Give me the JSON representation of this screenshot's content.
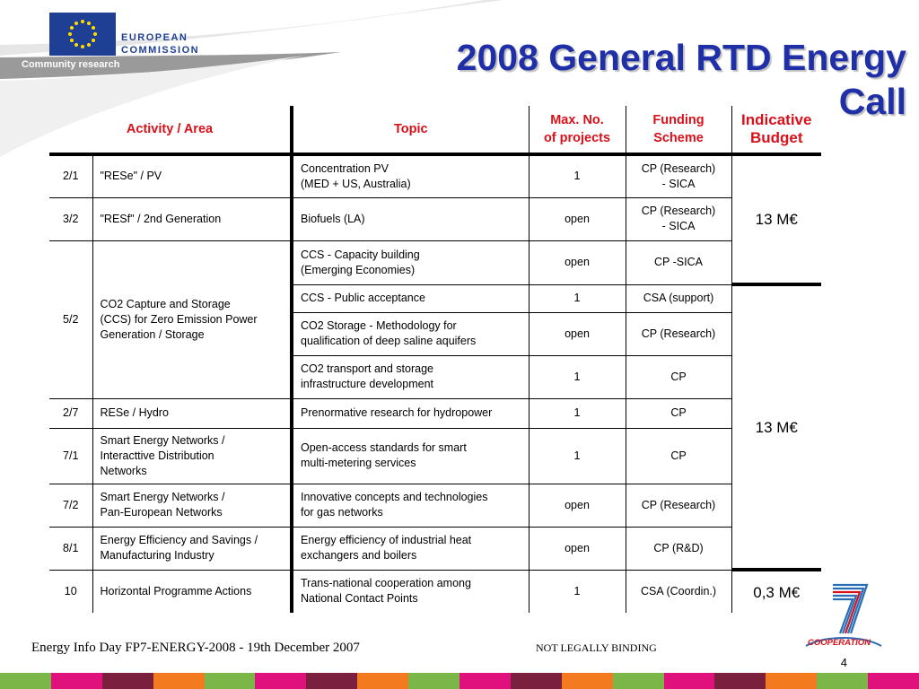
{
  "header": {
    "eu_line1": "EUROPEAN",
    "eu_line2": "COMMISSION",
    "community": "Community research",
    "title_line1": "2008 General RTD Energy",
    "title_line2": "Call"
  },
  "table": {
    "headers": {
      "activity": "Activity / Area",
      "topic": "Topic",
      "max_line1": "Max. No.",
      "max_line2": "of projects",
      "funding_line1": "Funding",
      "funding_line2": "Scheme",
      "budget_line1": "Indicative",
      "budget_line2": "Budget"
    },
    "rows": [
      {
        "num": "2/1",
        "activity": "\"RESe\" / PV",
        "topic1": "Concentration PV",
        "topic2": "(MED + US, Australia)",
        "max": "1",
        "fund1": "CP (Research)",
        "fund2": "- SICA"
      },
      {
        "num": "3/2",
        "activity": "\"RESf\" / 2nd Generation",
        "topic1": "Biofuels (LA)",
        "topic2": "",
        "max": "open",
        "fund1": "CP (Research)",
        "fund2": "- SICA"
      },
      {
        "num": "5/2",
        "activity1": "CO2 Capture and Storage",
        "activity2": "(CCS) for Zero Emission Power",
        "activity3": "Generation / Storage",
        "topic1": "CCS - Capacity building",
        "topic2": "(Emerging Economies)",
        "max": "open",
        "fund1": "CP -SICA",
        "fund2": ""
      },
      {
        "topic1": "CCS - Public acceptance",
        "topic2": "",
        "max": "1",
        "fund1": "CSA (support)",
        "fund2": ""
      },
      {
        "topic1": "CO2 Storage - Methodology for",
        "topic2": "qualification of deep saline aquifers",
        "max": "open",
        "fund1": "CP (Research)",
        "fund2": ""
      },
      {
        "topic1": "CO2 transport and storage",
        "topic2": "infrastructure development",
        "max": "1",
        "fund1": "CP",
        "fund2": ""
      },
      {
        "num": "2/7",
        "activity": "RESe / Hydro",
        "topic1": "Prenormative research for hydropower",
        "topic2": "",
        "max": "1",
        "fund1": "CP",
        "fund2": ""
      },
      {
        "num": "7/1",
        "activity1": "Smart Energy Networks /",
        "activity2": "Interacttive Distribution",
        "activity3": "Networks",
        "topic1": "Open-access standards for smart",
        "topic2": "multi-metering services",
        "max": "1",
        "fund1": "CP",
        "fund2": ""
      },
      {
        "num": "7/2",
        "activity1": "Smart Energy Networks /",
        "activity2": "Pan-European Networks",
        "topic1": "Innovative concepts and technologies",
        "topic2": "for gas networks",
        "max": "open",
        "fund1": "CP (Research)",
        "fund2": ""
      },
      {
        "num": "8/1",
        "activity1": "Energy Efficiency and Savings /",
        "activity2": "Manufacturing Industry",
        "topic1": "Energy efficiency of industrial heat",
        "topic2": "exchangers and boilers",
        "max": "open",
        "fund1": "CP (R&D)",
        "fund2": ""
      },
      {
        "num": "10",
        "activity": "Horizontal Programme Actions",
        "topic1": "Trans-national cooperation among",
        "topic2": "National Contact Points",
        "max": "1",
        "fund1": "CSA (Coordin.)",
        "fund2": ""
      }
    ],
    "budgets": [
      "13 M€",
      "13 M€",
      "0,3 M€"
    ]
  },
  "footer": {
    "left": "Energy Info Day FP7-ENERGY-2008 - 19th December 2007",
    "mid": "NOT LEGALLY BINDING",
    "page": "4",
    "fp7_label": "COOPERATION"
  },
  "colors": {
    "title": "#1f2fa8",
    "header_red": "#d8101a",
    "eu_blue": "#1f3f95",
    "strip": [
      "#7ab648",
      "#e0117c",
      "#7a1f3d",
      "#f47a20",
      "#7ab648",
      "#e0117c",
      "#7a1f3d",
      "#f47a20",
      "#7ab648",
      "#e0117c",
      "#7a1f3d",
      "#f47a20",
      "#7ab648",
      "#e0117c",
      "#7a1f3d",
      "#f47a20",
      "#7ab648",
      "#e0117c"
    ]
  }
}
